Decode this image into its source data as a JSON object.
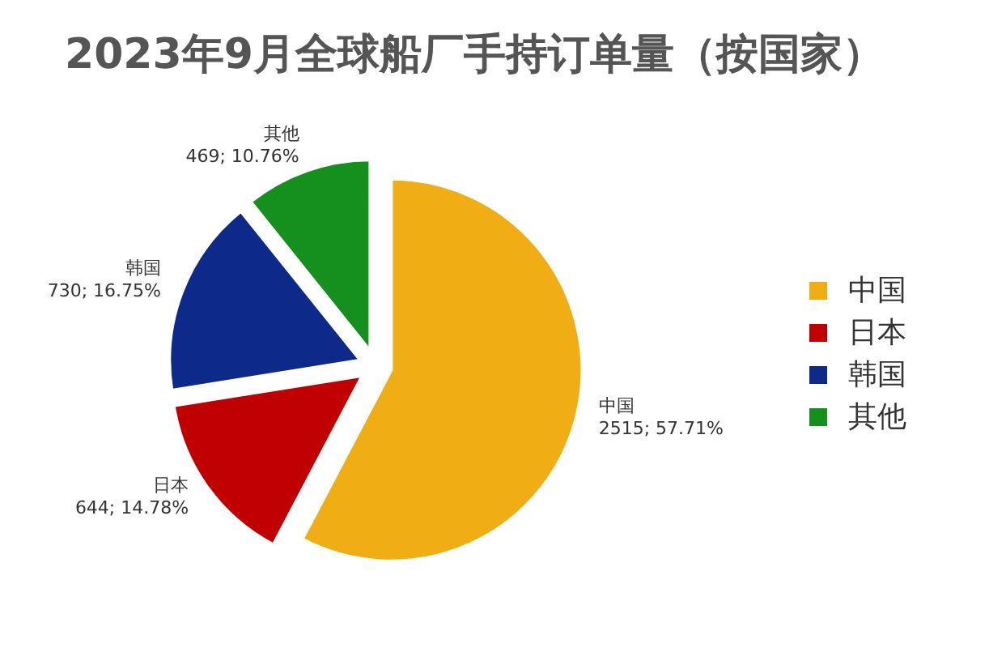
{
  "chart_data": {
    "type": "pie",
    "title": "2023年9月全球船厂手持订单量（按国家）",
    "categories": [
      "中国",
      "日本",
      "韩国",
      "其他"
    ],
    "values": [
      2515,
      644,
      730,
      469
    ],
    "colors": [
      "#f0ad14",
      "#c00000",
      "#0d2a8a",
      "#15901e"
    ],
    "value_labels": [
      "2515; 57.71%",
      "644; 14.78%",
      "730; 16.75%",
      "469; 10.76%"
    ],
    "legend": "right"
  }
}
